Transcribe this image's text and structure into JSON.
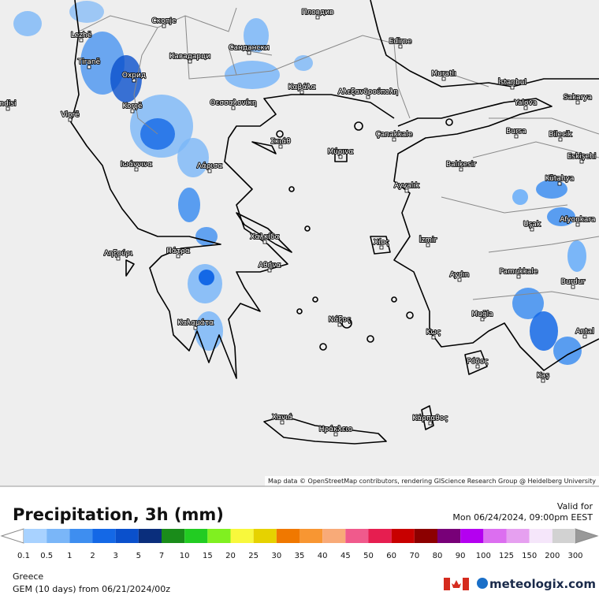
{
  "map": {
    "cities": [
      "Lezhë",
      "Скопје",
      "Пловдив",
      "Tiranë",
      "Охрид",
      "Кавадарци",
      "Сандански",
      "Edirne",
      "Muratlı",
      "İstanbul",
      "Καβάλα",
      "Αλεξανδρούπολη",
      "Yalova",
      "Sakarya",
      "ndisi",
      "Vlorë",
      "Korçë",
      "Θεσσαλονίκη",
      "Bursa",
      "Bilecik",
      "Çanakkale",
      "Σκιάθ",
      "Μύρινα",
      "Eskişehi",
      "Ιωάννινα",
      "Λάρισα",
      "Balıkesir",
      "Kütahya",
      "Ayvalık",
      "Afyonkara",
      "Uşak",
      "Χαλκίδα",
      "Χίος",
      "İzmir",
      "Ληξούρι",
      "Πάτρα",
      "Αθήνα",
      "Pamukkale",
      "Aydın",
      "Burdur",
      "Καλαμάτα",
      "Νάξος",
      "Muğla",
      "Κως",
      "Antal",
      "Ρόδος",
      "Kaş",
      "Χανιά",
      "Κάρπαθος",
      "Ηράκλειο"
    ],
    "attribution": "Map data © OpenStreetMap contributors, rendering GIScience Research Group @ Heidelberg University"
  },
  "legend": {
    "title": "Precipitation, 3h (mm)",
    "ticks": [
      0.1,
      0.5,
      1,
      2,
      3,
      5,
      7,
      10,
      15,
      20,
      25,
      30,
      35,
      40,
      45,
      50,
      60,
      70,
      80,
      90,
      100,
      125,
      150,
      200,
      300
    ],
    "colors": [
      "#a8d2ff",
      "#7ab6f8",
      "#3e8ef0",
      "#1468e6",
      "#0a50cc",
      "#0a2e7c",
      "#1a8c1a",
      "#22cc22",
      "#80f020",
      "#f8f83c",
      "#e6d200",
      "#f07800",
      "#f89632",
      "#f8aa78",
      "#f05a8c",
      "#e61e50",
      "#c80000",
      "#8c0000",
      "#780078",
      "#b400f0",
      "#dc6ef0",
      "#e6a0f0",
      "#f5e6fa",
      "#d2d2d2"
    ]
  },
  "valid": {
    "label": "Valid for",
    "time": "Mon 06/24/2024, 09:00pm EEST"
  },
  "footer": {
    "region": "Greece",
    "model": "GEM (10 days) from 06/21/2024/00z",
    "brand": "meteologix.com"
  }
}
